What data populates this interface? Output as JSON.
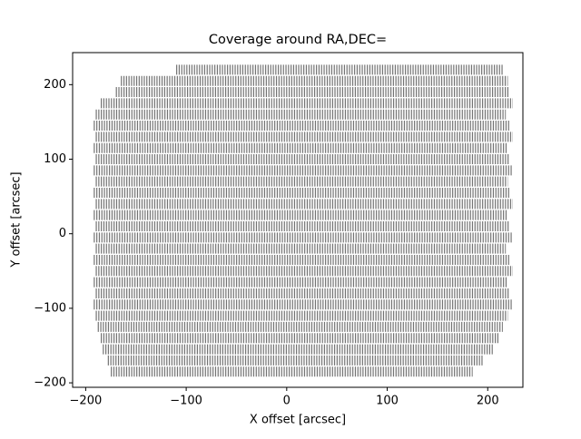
{
  "chart_data": {
    "type": "line",
    "title": "Coverage around RA,DEC=",
    "x_label": "X offset [arcsec]",
    "y_label": "Y offset [arcsec]",
    "color": "#000000",
    "xlim": [
      -213,
      235
    ],
    "ylim": [
      -206,
      243
    ],
    "xticks": [
      {
        "value": -200,
        "label": "−200"
      },
      {
        "value": -100,
        "label": "−100"
      },
      0,
      100,
      200
    ],
    "yticks": [
      {
        "value": -200,
        "label": "−200"
      },
      {
        "value": -100,
        "label": "−100"
      },
      0,
      100,
      200
    ],
    "x": [
      -110,
      215,
      null,
      -165,
      220,
      null,
      -170,
      222,
      null,
      -185,
      225,
      null,
      -190,
      218,
      null,
      -192,
      222,
      null,
      -190,
      225,
      null,
      -192,
      220,
      null,
      -190,
      222,
      null,
      -192,
      225,
      null,
      -190,
      220,
      null,
      -192,
      222,
      null,
      -190,
      225,
      null,
      -192,
      220,
      null,
      -190,
      222,
      null,
      -192,
      225,
      null,
      -190,
      218,
      null,
      -192,
      222,
      null,
      -190,
      225,
      null,
      -192,
      220,
      null,
      -190,
      222,
      null,
      -192,
      225,
      null,
      -190,
      220,
      null,
      -188,
      215,
      null,
      -185,
      212,
      null,
      -183,
      205,
      null,
      -178,
      195,
      null,
      -175,
      185
    ],
    "y": [
      220,
      220,
      null,
      205,
      205,
      null,
      190,
      190,
      null,
      175,
      175,
      null,
      160,
      160,
      null,
      145,
      145,
      null,
      130,
      130,
      null,
      115,
      115,
      null,
      100,
      100,
      null,
      85,
      85,
      null,
      70,
      70,
      null,
      55,
      55,
      null,
      40,
      40,
      null,
      25,
      25,
      null,
      10,
      10,
      null,
      -5,
      -5,
      null,
      -20,
      -20,
      null,
      -35,
      -35,
      null,
      -50,
      -50,
      null,
      -65,
      -65,
      null,
      -80,
      -80,
      null,
      -95,
      -95,
      null,
      -110,
      -110,
      null,
      -125,
      -125,
      null,
      -140,
      -140,
      null,
      -155,
      -155,
      null,
      -170,
      -170,
      null,
      -185,
      -185
    ]
  }
}
